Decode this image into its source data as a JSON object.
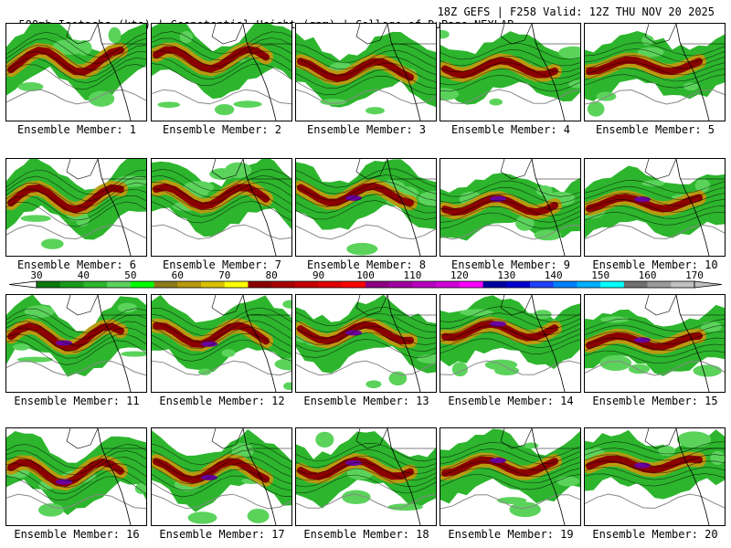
{
  "header": {
    "left": "500mb Isotachs (kts) | Geopotential Height (gpm) | College of DuPage NEXLAB",
    "right": "18Z GEFS | F258 Valid: 12Z THU NOV 20 2025"
  },
  "colorbar": {
    "labels": [
      "30",
      "40",
      "50",
      "60",
      "70",
      "80",
      "90",
      "100",
      "110",
      "120",
      "130",
      "140",
      "150",
      "160",
      "170"
    ],
    "colors": [
      "#0a7a0a",
      "#1a9a1a",
      "#2db52d",
      "#5bd35b",
      "#00ff00",
      "#8b7a1a",
      "#b89a10",
      "#d8c000",
      "#ffff00",
      "#8b0000",
      "#a80000",
      "#c40000",
      "#e00000",
      "#ff0000",
      "#8b0080",
      "#a000a0",
      "#b800c0",
      "#d000d8",
      "#ff00ff",
      "#0000a0",
      "#0000d0",
      "#2040ff",
      "#0080ff",
      "#00b0ff",
      "#00ffff",
      "#707070",
      "#9a9a9a",
      "#c0c0c0"
    ]
  },
  "panels": [
    {
      "label": "Ensemble Member: 1"
    },
    {
      "label": "Ensemble Member: 2"
    },
    {
      "label": "Ensemble Member: 3"
    },
    {
      "label": "Ensemble Member: 4"
    },
    {
      "label": "Ensemble Member: 5"
    },
    {
      "label": "Ensemble Member: 6"
    },
    {
      "label": "Ensemble Member: 7"
    },
    {
      "label": "Ensemble Member: 8"
    },
    {
      "label": "Ensemble Member: 9"
    },
    {
      "label": "Ensemble Member: 10"
    },
    {
      "label": "Ensemble Member: 11"
    },
    {
      "label": "Ensemble Member: 12"
    },
    {
      "label": "Ensemble Member: 13"
    },
    {
      "label": "Ensemble Member: 14"
    },
    {
      "label": "Ensemble Member: 15"
    },
    {
      "label": "Ensemble Member: 16"
    },
    {
      "label": "Ensemble Member: 17"
    },
    {
      "label": "Ensemble Member: 18"
    },
    {
      "label": "Ensemble Member: 19"
    },
    {
      "label": "Ensemble Member: 20"
    }
  ]
}
